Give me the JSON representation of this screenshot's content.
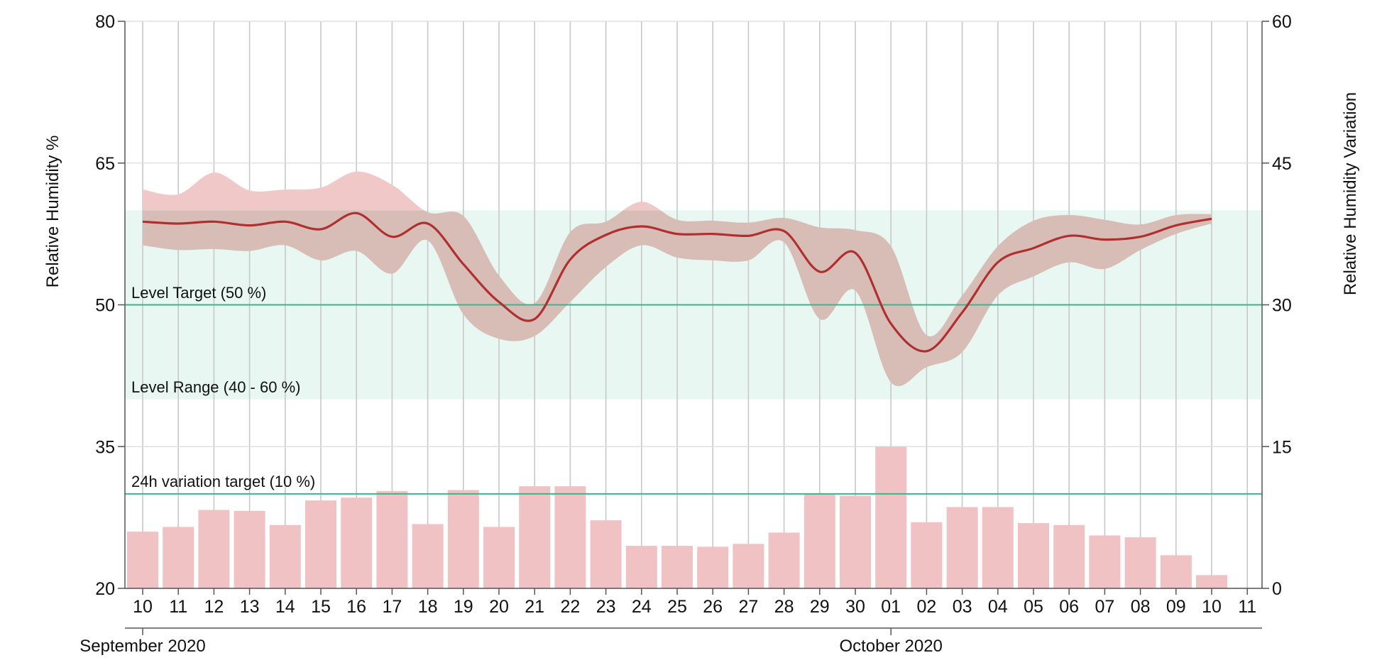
{
  "chart_data": {
    "type": "line",
    "title": "",
    "ylabel": "Relative Humidity %",
    "y2label": "Relative Humidity Variation",
    "ylim": [
      20,
      80
    ],
    "y2lim": [
      0,
      60
    ],
    "yticks": [
      "20",
      "35",
      "50",
      "65",
      "80"
    ],
    "y2ticks": [
      "0",
      "15",
      "30",
      "45",
      "60"
    ],
    "x_tick_labels": [
      "10",
      "11",
      "12",
      "13",
      "14",
      "15",
      "16",
      "17",
      "18",
      "19",
      "20",
      "21",
      "22",
      "23",
      "24",
      "25",
      "26",
      "27",
      "28",
      "29",
      "30",
      "01",
      "02",
      "03",
      "04",
      "05",
      "06",
      "07",
      "08",
      "09",
      "10",
      "11"
    ],
    "months": [
      {
        "label": "September 2020",
        "tick_index": 0
      },
      {
        "label": "October 2020",
        "tick_index": 21
      }
    ],
    "level_target": {
      "label": "Level Target (50 %)",
      "value": 50
    },
    "level_range": {
      "label": "Level Range (40 - 60 %)",
      "low": 40,
      "high": 60
    },
    "variation_target": {
      "label": "24h variation target (10 %)",
      "value": 10
    },
    "series": [
      {
        "kind": "line",
        "values": [
          58.8,
          58.6,
          58.8,
          58.4,
          58.8,
          58.0,
          59.7,
          57.2,
          58.6,
          54.3,
          50.3,
          48.5,
          54.8,
          57.4,
          58.3,
          57.5,
          57.5,
          57.3,
          57.8,
          53.5,
          55.5,
          48.0,
          45.1,
          49.2,
          54.5,
          56.0,
          57.3,
          56.9,
          57.2,
          58.4,
          59.1
        ]
      },
      {
        "kind": "band",
        "low": [
          56.3,
          55.8,
          55.9,
          55.7,
          56.3,
          54.7,
          55.7,
          53.3,
          56.8,
          49.0,
          46.4,
          46.7,
          50.3,
          54.0,
          56.3,
          55.0,
          54.7,
          54.7,
          56.6,
          48.5,
          51.5,
          41.8,
          43.4,
          45.0,
          51.0,
          53.0,
          54.5,
          53.8,
          55.8,
          57.5,
          58.6
        ],
        "high": [
          62.2,
          61.7,
          64.0,
          62.1,
          62.2,
          62.4,
          64.1,
          62.7,
          59.8,
          59.4,
          53.1,
          50.2,
          57.7,
          58.8,
          60.9,
          59.0,
          58.9,
          58.7,
          59.2,
          58.2,
          57.9,
          56.2,
          46.8,
          51.0,
          56.2,
          58.9,
          59.5,
          59.0,
          58.5,
          59.5,
          59.6
        ]
      },
      {
        "kind": "bar",
        "axis": "right",
        "values": [
          6.0,
          6.5,
          8.3,
          8.2,
          6.7,
          9.3,
          9.6,
          10.3,
          6.8,
          10.4,
          6.5,
          10.8,
          10.8,
          7.2,
          4.5,
          4.5,
          4.4,
          4.7,
          5.9,
          10.0,
          9.8,
          15.0,
          7.0,
          8.6,
          8.6,
          6.9,
          6.7,
          5.6,
          5.4,
          3.5,
          1.4
        ]
      }
    ],
    "colors": {
      "line": "#b03030",
      "band": "#d8bdb6",
      "band_above_range": "#f0c8c8",
      "range_fill": "#e8f7f1",
      "target_line": "#3db390",
      "bar": "#f0c2c3"
    },
    "grid": true
  }
}
